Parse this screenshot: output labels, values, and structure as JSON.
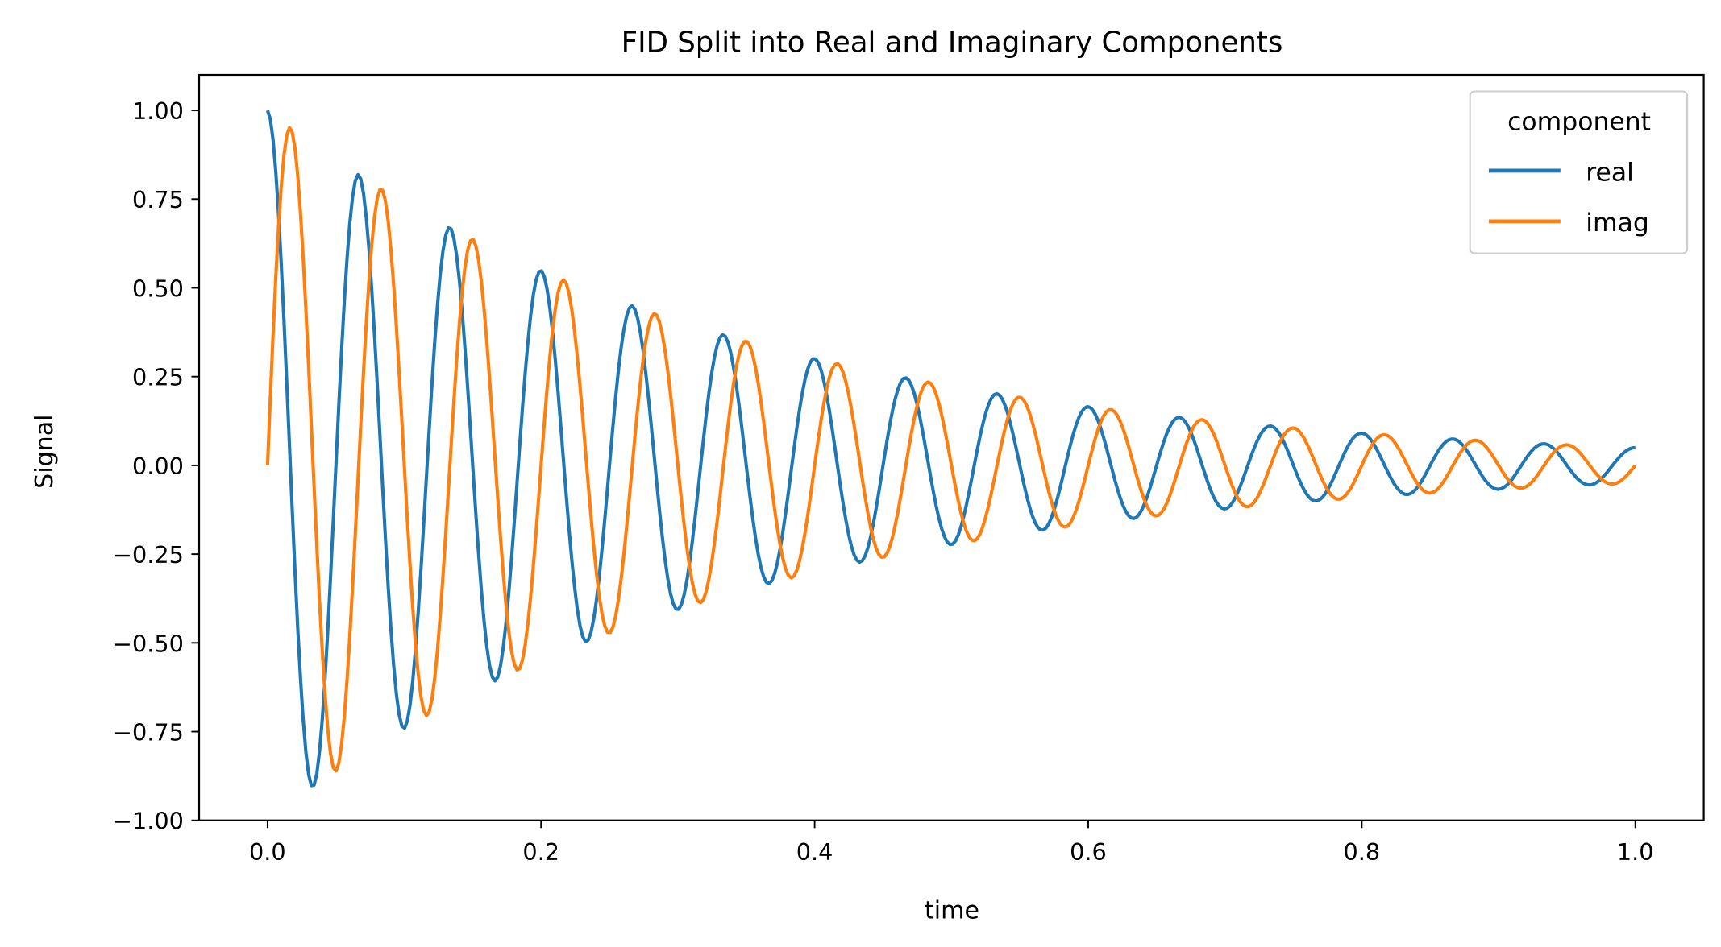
{
  "chart_data": {
    "type": "line",
    "title": "FID Split into Real and Imaginary Components",
    "xlabel": "time",
    "ylabel": "Signal",
    "xlim": [
      -0.05,
      1.05
    ],
    "ylim": [
      -1.0,
      1.1
    ],
    "xticks": [
      0.0,
      0.2,
      0.4,
      0.6,
      0.8,
      1.0
    ],
    "xtick_labels": [
      "0.0",
      "0.2",
      "0.4",
      "0.6",
      "0.8",
      "1.0"
    ],
    "yticks": [
      1.0,
      0.75,
      0.5,
      0.25,
      0.0,
      -0.25,
      -0.5,
      -0.75,
      -1.0
    ],
    "ytick_labels": [
      "1.00",
      "0.75",
      "0.50",
      "0.25",
      "0.00",
      "−0.25",
      "−0.50",
      "−0.75",
      "−1.00"
    ],
    "grid": false,
    "legend": {
      "title": "component",
      "placement": "top-right"
    },
    "x_range": [
      0.0,
      1.0
    ],
    "n_points": 500,
    "model": {
      "amplitude": 1.0,
      "frequency_hz": 15,
      "decay_rate": 3.0
    },
    "series": [
      {
        "name": "real",
        "color": "#1f77b4",
        "function": "amplitude*exp(-decay_rate*t)*cos(2*pi*frequency_hz*t)"
      },
      {
        "name": "imag",
        "color": "#ff7f0e",
        "function": "amplitude*exp(-decay_rate*t)*sin(2*pi*frequency_hz*t)"
      }
    ]
  }
}
